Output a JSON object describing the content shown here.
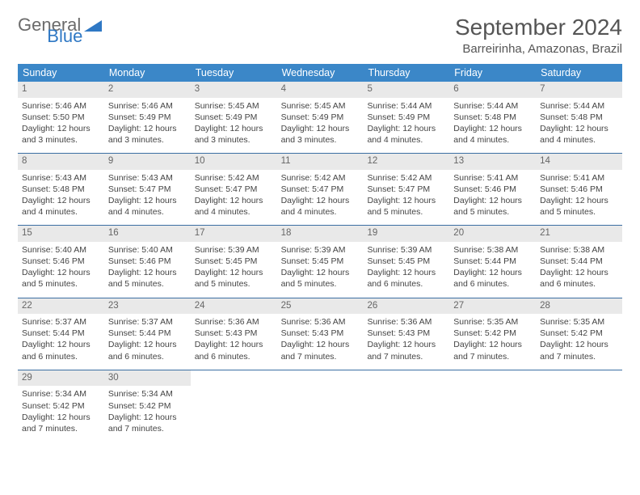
{
  "brand": {
    "text1": "General",
    "text2": "Blue"
  },
  "title": "September 2024",
  "location": "Barreirinha, Amazonas, Brazil",
  "colors": {
    "header_bg": "#3b87c8",
    "week_border": "#3b6fa3",
    "daynum_bg": "#e9e9e9",
    "logo_gray": "#6b6b6b",
    "logo_blue": "#2f78c4"
  },
  "weekdays": [
    "Sunday",
    "Monday",
    "Tuesday",
    "Wednesday",
    "Thursday",
    "Friday",
    "Saturday"
  ],
  "weeks": [
    [
      {
        "n": "1",
        "sr": "5:46 AM",
        "ss": "5:50 PM",
        "dl": "12 hours and 3 minutes."
      },
      {
        "n": "2",
        "sr": "5:46 AM",
        "ss": "5:49 PM",
        "dl": "12 hours and 3 minutes."
      },
      {
        "n": "3",
        "sr": "5:45 AM",
        "ss": "5:49 PM",
        "dl": "12 hours and 3 minutes."
      },
      {
        "n": "4",
        "sr": "5:45 AM",
        "ss": "5:49 PM",
        "dl": "12 hours and 3 minutes."
      },
      {
        "n": "5",
        "sr": "5:44 AM",
        "ss": "5:49 PM",
        "dl": "12 hours and 4 minutes."
      },
      {
        "n": "6",
        "sr": "5:44 AM",
        "ss": "5:48 PM",
        "dl": "12 hours and 4 minutes."
      },
      {
        "n": "7",
        "sr": "5:44 AM",
        "ss": "5:48 PM",
        "dl": "12 hours and 4 minutes."
      }
    ],
    [
      {
        "n": "8",
        "sr": "5:43 AM",
        "ss": "5:48 PM",
        "dl": "12 hours and 4 minutes."
      },
      {
        "n": "9",
        "sr": "5:43 AM",
        "ss": "5:47 PM",
        "dl": "12 hours and 4 minutes."
      },
      {
        "n": "10",
        "sr": "5:42 AM",
        "ss": "5:47 PM",
        "dl": "12 hours and 4 minutes."
      },
      {
        "n": "11",
        "sr": "5:42 AM",
        "ss": "5:47 PM",
        "dl": "12 hours and 4 minutes."
      },
      {
        "n": "12",
        "sr": "5:42 AM",
        "ss": "5:47 PM",
        "dl": "12 hours and 5 minutes."
      },
      {
        "n": "13",
        "sr": "5:41 AM",
        "ss": "5:46 PM",
        "dl": "12 hours and 5 minutes."
      },
      {
        "n": "14",
        "sr": "5:41 AM",
        "ss": "5:46 PM",
        "dl": "12 hours and 5 minutes."
      }
    ],
    [
      {
        "n": "15",
        "sr": "5:40 AM",
        "ss": "5:46 PM",
        "dl": "12 hours and 5 minutes."
      },
      {
        "n": "16",
        "sr": "5:40 AM",
        "ss": "5:46 PM",
        "dl": "12 hours and 5 minutes."
      },
      {
        "n": "17",
        "sr": "5:39 AM",
        "ss": "5:45 PM",
        "dl": "12 hours and 5 minutes."
      },
      {
        "n": "18",
        "sr": "5:39 AM",
        "ss": "5:45 PM",
        "dl": "12 hours and 5 minutes."
      },
      {
        "n": "19",
        "sr": "5:39 AM",
        "ss": "5:45 PM",
        "dl": "12 hours and 6 minutes."
      },
      {
        "n": "20",
        "sr": "5:38 AM",
        "ss": "5:44 PM",
        "dl": "12 hours and 6 minutes."
      },
      {
        "n": "21",
        "sr": "5:38 AM",
        "ss": "5:44 PM",
        "dl": "12 hours and 6 minutes."
      }
    ],
    [
      {
        "n": "22",
        "sr": "5:37 AM",
        "ss": "5:44 PM",
        "dl": "12 hours and 6 minutes."
      },
      {
        "n": "23",
        "sr": "5:37 AM",
        "ss": "5:44 PM",
        "dl": "12 hours and 6 minutes."
      },
      {
        "n": "24",
        "sr": "5:36 AM",
        "ss": "5:43 PM",
        "dl": "12 hours and 6 minutes."
      },
      {
        "n": "25",
        "sr": "5:36 AM",
        "ss": "5:43 PM",
        "dl": "12 hours and 7 minutes."
      },
      {
        "n": "26",
        "sr": "5:36 AM",
        "ss": "5:43 PM",
        "dl": "12 hours and 7 minutes."
      },
      {
        "n": "27",
        "sr": "5:35 AM",
        "ss": "5:42 PM",
        "dl": "12 hours and 7 minutes."
      },
      {
        "n": "28",
        "sr": "5:35 AM",
        "ss": "5:42 PM",
        "dl": "12 hours and 7 minutes."
      }
    ],
    [
      {
        "n": "29",
        "sr": "5:34 AM",
        "ss": "5:42 PM",
        "dl": "12 hours and 7 minutes."
      },
      {
        "n": "30",
        "sr": "5:34 AM",
        "ss": "5:42 PM",
        "dl": "12 hours and 7 minutes."
      },
      null,
      null,
      null,
      null,
      null
    ]
  ],
  "labels": {
    "sunrise": "Sunrise:",
    "sunset": "Sunset:",
    "daylight": "Daylight:"
  }
}
